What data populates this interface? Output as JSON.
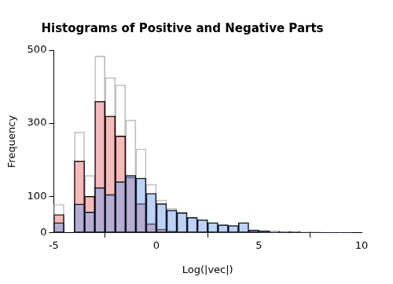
{
  "chart_data": {
    "type": "histogram",
    "title": "Histograms of Positive and Negative Parts",
    "x_label": "Log(|vec|)",
    "y_label": "Frequency",
    "bins": [
      -5,
      -4.5,
      -4,
      -3.5,
      -3,
      -2.5,
      -2,
      -1.5,
      -1,
      -0.5,
      0,
      0.5,
      1,
      1.5,
      2,
      2.5,
      3,
      3.5,
      4,
      4.5,
      5,
      5.5,
      6,
      6.5,
      7,
      7.5,
      8,
      8.5,
      9,
      9.5
    ],
    "series": [
      {
        "color": "#bebebe",
        "line_style": "outline",
        "values": [
          78,
          0,
          276,
          157,
          484,
          425,
          405,
          309,
          230,
          133,
          90,
          67,
          57,
          43,
          36,
          28,
          22,
          20,
          28,
          8,
          6,
          4,
          3,
          3,
          2,
          2,
          1,
          1,
          1
        ]
      },
      {
        "color": "rgba(232,120,120,0.5)",
        "line_style": "filled",
        "values": [
          50,
          0,
          197,
          100,
          360,
          320,
          265,
          152,
          80,
          25,
          10,
          5,
          2,
          1,
          0,
          0,
          0,
          0,
          0,
          0,
          0,
          0,
          0,
          0,
          0,
          0,
          0,
          0,
          0
        ]
      },
      {
        "color": "rgba(110,155,235,0.45)",
        "line_style": "filled",
        "values": [
          28,
          0,
          79,
          57,
          124,
          105,
          140,
          157,
          150,
          108,
          80,
          62,
          55,
          42,
          36,
          28,
          22,
          20,
          28,
          8,
          6,
          4,
          3,
          3,
          2,
          2,
          1,
          1,
          1
        ]
      }
    ],
    "xlim": [
      -5,
      10
    ],
    "xticks": [
      -5,
      0,
      5,
      10
    ],
    "ylim": [
      0,
      500
    ],
    "yticks": [
      0,
      100,
      300,
      500
    ],
    "grid": false
  }
}
